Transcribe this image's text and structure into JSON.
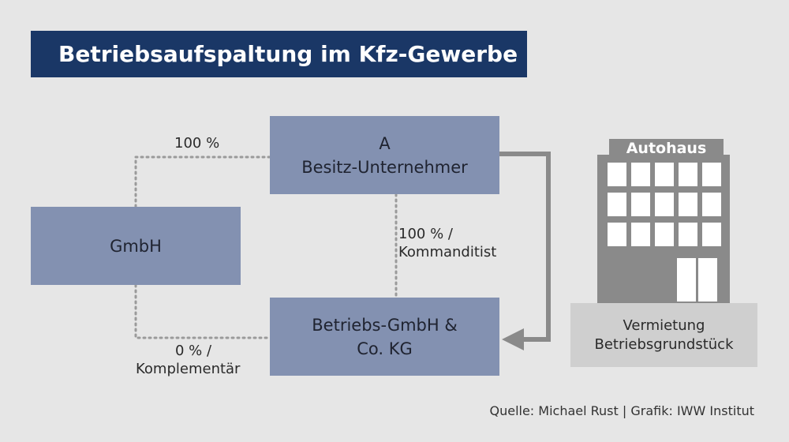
{
  "title": "Betriebsaufspaltung im Kfz-Gewerbe",
  "nodes": {
    "besitz": {
      "line1": "A",
      "line2": "Besitz-Unternehmer"
    },
    "gmbh": {
      "label": "GmbH"
    },
    "kg": {
      "line1": "Betriebs-GmbH &",
      "line2": "Co. KG"
    }
  },
  "edges": {
    "gmbh_to_a": {
      "label": "100 %"
    },
    "a_to_kg": {
      "line1": "100 % /",
      "line2": "Kommanditist"
    },
    "gmbh_to_kg": {
      "line1": "0 % /",
      "line2": "Komplementär"
    }
  },
  "building": {
    "sign": "Autohaus",
    "caption_line1": "Vermietung",
    "caption_line2": "Betriebsgrundstück"
  },
  "source": "Quelle: Michael Rust | Grafik: IWW Institut",
  "colors": {
    "title_bg": "#1a3766",
    "box_fill": "#8391b1",
    "background": "#e6e6e6",
    "building": "#8a8a8a",
    "building_base": "#cfcfcf",
    "arrow": "#8a8a8a",
    "dotted_line": "#9a9a9a"
  }
}
